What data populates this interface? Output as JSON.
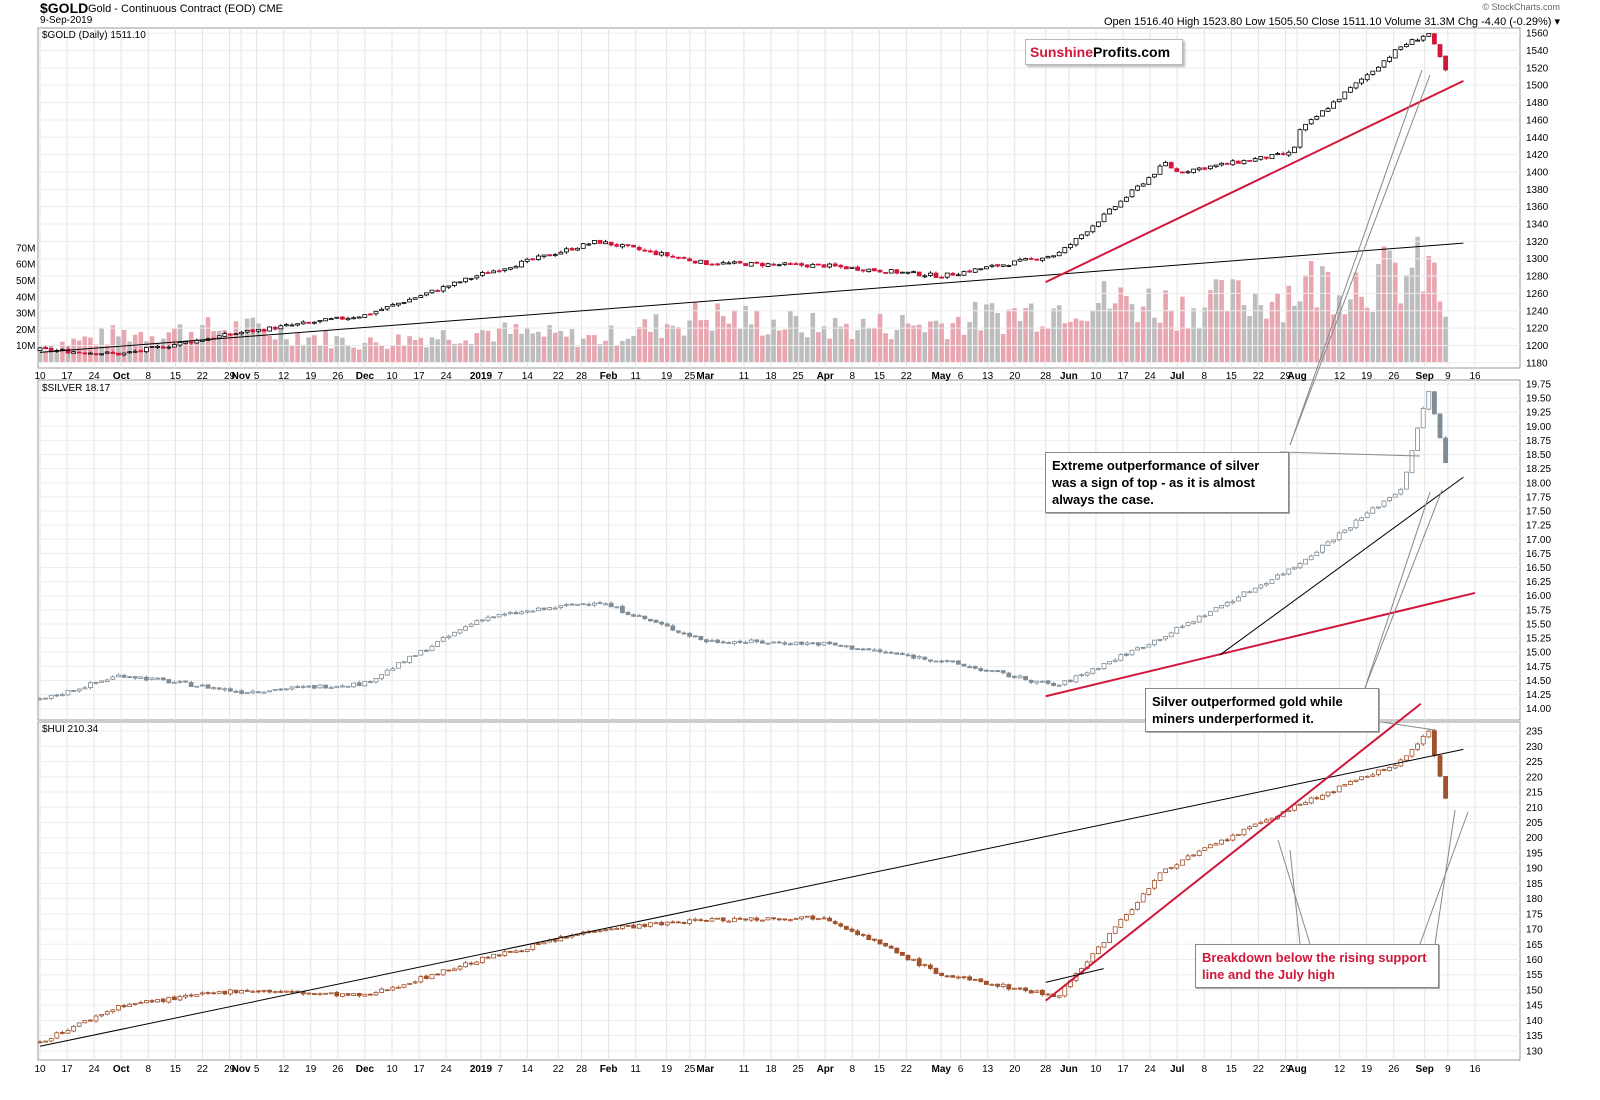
{
  "header": {
    "symbol": "$GOLD",
    "description": "Gold - Continuous Contract (EOD)  CME",
    "date": "9-Sep-2019",
    "credit": "© StockCharts.com",
    "ohlc_text": "Open 1516.40  High 1523.80  Low 1505.50  Close 1511.10  Volume 31.3M  Chg -4.40 (-0.29%) ▾"
  },
  "logo": {
    "part1": "Sunshine",
    "part2": "Profits.com"
  },
  "colors": {
    "up": "#000000",
    "down": "#d1173b",
    "silver": "#7f8c96",
    "hui": "#a0522d",
    "red_line": "#d1173b",
    "black_line": "#000000",
    "vol_up": "#bdbdbd",
    "vol_down": "#e8a6b0"
  },
  "notes": {
    "silver_top": "Extreme outperformance of silver was a sign of top - as it is almost always the case.",
    "silver_vs_miners": "Silver outperformed gold while miners underperformed it.",
    "breakdown": "Breakdown below the rising support line and the July high"
  },
  "chart_data": [
    {
      "type": "line",
      "panel_label": "$GOLD (Daily) 1511.10",
      "y_ticks": [
        1180,
        1200,
        1220,
        1240,
        1260,
        1280,
        1300,
        1320,
        1340,
        1360,
        1380,
        1400,
        1420,
        1440,
        1460,
        1480,
        1500,
        1520,
        1540,
        1560
      ],
      "volume_ticks": [
        "10M",
        "20M",
        "30M",
        "40M",
        "50M",
        "60M",
        "70M"
      ],
      "ylim": [
        1174,
        1566
      ],
      "x": [
        "2018-09-10",
        "2018-10-01",
        "2018-11-01",
        "2018-12-03",
        "2019-01-02",
        "2019-02-01",
        "2019-03-01",
        "2019-04-01",
        "2019-05-01",
        "2019-05-31",
        "2019-06-03",
        "2019-06-28",
        "2019-07-01",
        "2019-07-31",
        "2019-08-01",
        "2019-08-28",
        "2019-09-04",
        "2019-09-09"
      ],
      "values": [
        1195,
        1190,
        1215,
        1235,
        1282,
        1320,
        1295,
        1292,
        1280,
        1305,
        1315,
        1410,
        1400,
        1422,
        1445,
        1545,
        1560,
        1511
      ],
      "volume_m": [
        10,
        18,
        22,
        12,
        20,
        15,
        30,
        22,
        25,
        35,
        40,
        38,
        35,
        45,
        50,
        55,
        60,
        31.3
      ],
      "trendlines": [
        {
          "name": "black support",
          "from": [
            "2018-09-10",
            1192
          ],
          "to": [
            "2019-09-13",
            1318
          ]
        },
        {
          "name": "red support",
          "from": [
            "2019-05-28",
            1273
          ],
          "to": [
            "2019-09-13",
            1505
          ]
        }
      ]
    },
    {
      "type": "line",
      "panel_label": "$SILVER 18.17",
      "y_ticks": [
        "14.00",
        "14.25",
        "14.50",
        "14.75",
        "15.00",
        "15.25",
        "15.50",
        "15.75",
        "16.00",
        "16.25",
        "16.50",
        "16.75",
        "17.00",
        "17.25",
        "17.50",
        "17.75",
        "18.00",
        "18.25",
        "18.50",
        "18.75",
        "19.00",
        "19.25",
        "19.50",
        "19.75"
      ],
      "ylim": [
        13.8,
        19.82
      ],
      "x": [
        "2018-09-10",
        "2018-10-01",
        "2018-11-01",
        "2018-12-03",
        "2019-01-02",
        "2019-02-01",
        "2019-03-01",
        "2019-04-01",
        "2019-05-01",
        "2019-05-31",
        "2019-06-28",
        "2019-07-31",
        "2019-08-28",
        "2019-09-04",
        "2019-09-09"
      ],
      "values": [
        14.15,
        14.6,
        14.3,
        14.45,
        15.6,
        15.9,
        15.2,
        15.15,
        14.85,
        14.4,
        15.3,
        16.5,
        17.9,
        19.65,
        18.17
      ],
      "trendlines": [
        {
          "name": "red support",
          "from": [
            "2019-05-28",
            14.22
          ],
          "to": [
            "2019-09-16",
            16.05
          ]
        },
        {
          "name": "black support",
          "from": [
            "2019-07-12",
            14.95
          ],
          "to": [
            "2019-09-13",
            18.1
          ]
        }
      ]
    },
    {
      "type": "line",
      "panel_label": "$HUI 210.34",
      "y_ticks": [
        130,
        135,
        140,
        145,
        150,
        155,
        160,
        165,
        170,
        175,
        180,
        185,
        190,
        195,
        200,
        205,
        210,
        215,
        220,
        225,
        230,
        235
      ],
      "ylim": [
        127,
        238
      ],
      "x": [
        "2018-09-10",
        "2018-10-01",
        "2018-11-01",
        "2018-12-03",
        "2019-01-02",
        "2019-02-01",
        "2019-03-01",
        "2019-04-01",
        "2019-05-01",
        "2019-05-31",
        "2019-06-28",
        "2019-07-31",
        "2019-08-28",
        "2019-09-04",
        "2019-09-09"
      ],
      "values": [
        133,
        145,
        150,
        148,
        160,
        170,
        173,
        174,
        155,
        148,
        190,
        210,
        225,
        235,
        210.34
      ],
      "trendlines": [
        {
          "name": "black support",
          "from": [
            "2018-09-10",
            131.5
          ],
          "to": [
            "2019-09-13",
            229
          ]
        },
        {
          "name": "red rising line",
          "from": [
            "2019-05-28",
            146.5
          ],
          "to": [
            "2019-09-02",
            244
          ]
        },
        {
          "name": "black short",
          "from": [
            "2019-05-28",
            152.5
          ],
          "to": [
            "2019-06-12",
            157
          ]
        }
      ]
    }
  ],
  "x_axis_labels": [
    {
      "text": "10",
      "d": "2018-09-10"
    },
    {
      "text": "17",
      "d": "2018-09-17"
    },
    {
      "text": "24",
      "d": "2018-09-24"
    },
    {
      "text": "Oct",
      "d": "2018-10-01"
    },
    {
      "text": "8",
      "d": "2018-10-08"
    },
    {
      "text": "15",
      "d": "2018-10-15"
    },
    {
      "text": "22",
      "d": "2018-10-22"
    },
    {
      "text": "29",
      "d": "2018-10-29"
    },
    {
      "text": "Nov",
      "d": "2018-11-01"
    },
    {
      "text": "5",
      "d": "2018-11-05"
    },
    {
      "text": "12",
      "d": "2018-11-12"
    },
    {
      "text": "19",
      "d": "2018-11-19"
    },
    {
      "text": "26",
      "d": "2018-11-26"
    },
    {
      "text": "Dec",
      "d": "2018-12-03"
    },
    {
      "text": "10",
      "d": "2018-12-10"
    },
    {
      "text": "17",
      "d": "2018-12-17"
    },
    {
      "text": "24",
      "d": "2018-12-24"
    },
    {
      "text": "2019",
      "d": "2019-01-02"
    },
    {
      "text": "7",
      "d": "2019-01-07"
    },
    {
      "text": "14",
      "d": "2019-01-14"
    },
    {
      "text": "22",
      "d": "2019-01-22"
    },
    {
      "text": "28",
      "d": "2019-01-28"
    },
    {
      "text": "Feb",
      "d": "2019-02-04"
    },
    {
      "text": "11",
      "d": "2019-02-11"
    },
    {
      "text": "19",
      "d": "2019-02-19"
    },
    {
      "text": "25",
      "d": "2019-02-25"
    },
    {
      "text": "Mar",
      "d": "2019-03-01"
    },
    {
      "text": "11",
      "d": "2019-03-11"
    },
    {
      "text": "18",
      "d": "2019-03-18"
    },
    {
      "text": "25",
      "d": "2019-03-25"
    },
    {
      "text": "Apr",
      "d": "2019-04-01"
    },
    {
      "text": "8",
      "d": "2019-04-08"
    },
    {
      "text": "15",
      "d": "2019-04-15"
    },
    {
      "text": "22",
      "d": "2019-04-22"
    },
    {
      "text": "May",
      "d": "2019-05-01"
    },
    {
      "text": "6",
      "d": "2019-05-06"
    },
    {
      "text": "13",
      "d": "2019-05-13"
    },
    {
      "text": "20",
      "d": "2019-05-20"
    },
    {
      "text": "28",
      "d": "2019-05-28"
    },
    {
      "text": "Jun",
      "d": "2019-06-03"
    },
    {
      "text": "10",
      "d": "2019-06-10"
    },
    {
      "text": "17",
      "d": "2019-06-17"
    },
    {
      "text": "24",
      "d": "2019-06-24"
    },
    {
      "text": "Jul",
      "d": "2019-07-01"
    },
    {
      "text": "8",
      "d": "2019-07-08"
    },
    {
      "text": "15",
      "d": "2019-07-15"
    },
    {
      "text": "22",
      "d": "2019-07-22"
    },
    {
      "text": "29",
      "d": "2019-07-29"
    },
    {
      "text": "Aug",
      "d": "2019-08-01"
    },
    {
      "text": "12",
      "d": "2019-08-12"
    },
    {
      "text": "19",
      "d": "2019-08-19"
    },
    {
      "text": "26",
      "d": "2019-08-26"
    },
    {
      "text": "Sep",
      "d": "2019-09-03"
    },
    {
      "text": "9",
      "d": "2019-09-09"
    },
    {
      "text": "16",
      "d": "2019-09-16"
    }
  ]
}
